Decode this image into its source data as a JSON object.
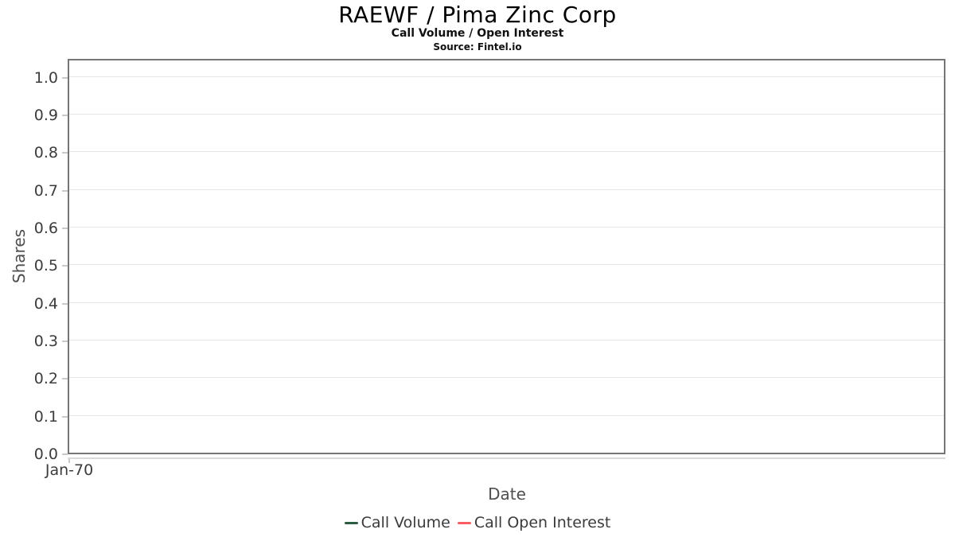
{
  "header": {
    "title": "RAEWF / Pima Zinc Corp",
    "subtitle": "Call Volume / Open Interest",
    "source": "Source: Fintel.io"
  },
  "axes": {
    "y_label": "Shares",
    "x_label": "Date",
    "x_tick": "Jan-70"
  },
  "legend": {
    "items": [
      {
        "label": "Call Volume",
        "color": "#2c5d3f"
      },
      {
        "label": "Call Open Interest",
        "color": "#fa5e62"
      }
    ]
  },
  "colors": {
    "plot_border": "#757575",
    "gridline": "#e6e6e6",
    "tick_mark": "#c9c9c9",
    "axis_line": "#d9d9d9",
    "call_volume": "#2c5d3f",
    "call_open_interest": "#fa5e62"
  },
  "chart_data": {
    "type": "line",
    "title": "RAEWF / Pima Zinc Corp",
    "subtitle": "Call Volume / Open Interest",
    "source": "Source: Fintel.io",
    "xlabel": "Date",
    "ylabel": "Shares",
    "x_tick_labels": [
      "Jan-70"
    ],
    "y_ticks": [
      0.0,
      0.1,
      0.2,
      0.3,
      0.4,
      0.5,
      0.6,
      0.7,
      0.8,
      0.9,
      1.0
    ],
    "ylim": [
      0,
      1.05
    ],
    "grid": "horizontal",
    "legend_position": "bottom",
    "series": [
      {
        "name": "Call Volume",
        "color": "#2c5d3f",
        "x": [],
        "values": []
      },
      {
        "name": "Call Open Interest",
        "color": "#fa5e62",
        "x": [],
        "values": []
      }
    ]
  }
}
